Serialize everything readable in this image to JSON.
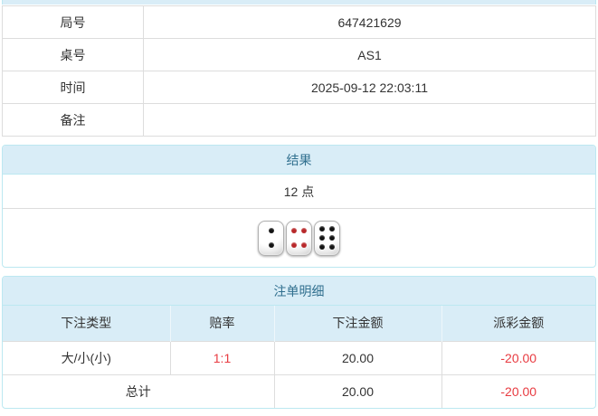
{
  "info_table": {
    "rows": [
      {
        "label": "局号",
        "value": "647421629"
      },
      {
        "label": "桌号",
        "value": "AS1"
      },
      {
        "label": "时间",
        "value": "2025-09-12 22:03:11"
      },
      {
        "label": "备注",
        "value": ""
      }
    ]
  },
  "result_panel": {
    "title": "结果",
    "points": "12 点",
    "dice": [
      {
        "value": 2,
        "color": "black"
      },
      {
        "value": 4,
        "color": "red"
      },
      {
        "value": 6,
        "color": "black"
      }
    ]
  },
  "bet_panel": {
    "title": "注单明细",
    "columns": [
      "下注类型",
      "赔率",
      "下注金额",
      "派彩金额"
    ],
    "rows": [
      {
        "type": "大/小(小)",
        "odds": "1:1",
        "amount": "20.00",
        "payout": "-20.00"
      }
    ],
    "total": {
      "label": "总计",
      "amount": "20.00",
      "payout": "-20.00"
    }
  },
  "colors": {
    "panel_heading_bg": "#d9edf7",
    "panel_heading_text": "#31708f",
    "panel_border": "#bce8f1",
    "table_border": "#dddddd",
    "negative_red": "#e83b41",
    "body_text": "#333333"
  }
}
